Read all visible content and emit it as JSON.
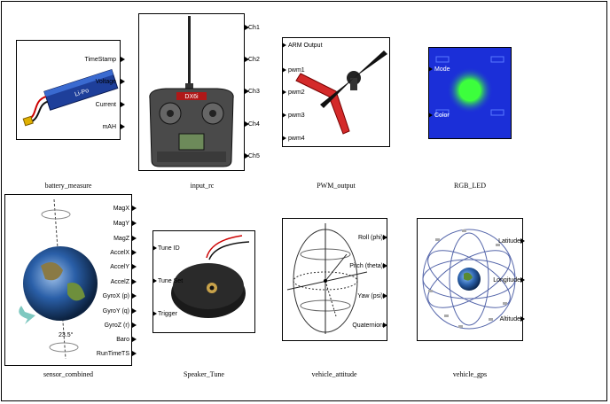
{
  "blocks": {
    "battery_measure": {
      "title": "battery_measure",
      "outputs": [
        "TimeStamp",
        "Voltage",
        "Current",
        "mAH"
      ],
      "image_icon": "lipo-battery-icon"
    },
    "input_rc": {
      "title": "input_rc",
      "outputs": [
        "Ch1",
        "Ch2",
        "Ch3",
        "Ch4",
        "Ch5"
      ],
      "image_icon": "rc-transmitter-icon",
      "brand_text": "DX6i"
    },
    "pwm_output": {
      "title": "PWM_output",
      "inputs": [
        "ARM Output",
        "pwm1",
        "pwm2",
        "pwm3",
        "pwm4"
      ],
      "image_icon": "motor-propeller-icon"
    },
    "rgb_led": {
      "title": "RGB_LED",
      "inputs": [
        "Mode",
        "Color"
      ],
      "image_icon": "led-board-icon"
    },
    "sensor_combined": {
      "title": "sensor_combined",
      "outputs": [
        "MagX",
        "MagY",
        "MagZ",
        "AccelX",
        "AccelY",
        "AccelZ",
        "GyroX (p)",
        "GyroY (q)",
        "GyroZ (r)",
        "Baro",
        "RunTimeTS"
      ],
      "image_icon": "earth-rotation-icon",
      "tilt_label": "23.5°"
    },
    "speaker_tune": {
      "title": "Speaker_Tune",
      "inputs": [
        "Tune ID",
        "Tune Set",
        "Trigger"
      ],
      "image_icon": "buzzer-icon"
    },
    "vehicle_attitude": {
      "title": "vehicle_attitude",
      "outputs": [
        "Roll (phi)",
        "Pitch (theta)",
        "Yaw (psi)",
        "Quaternion"
      ],
      "image_icon": "attitude-sphere-icon"
    },
    "vehicle_gps": {
      "title": "vehicle_gps",
      "outputs": [
        "Latitude",
        "Longitude",
        "Altitude"
      ],
      "image_icon": "gps-constellation-icon"
    }
  },
  "colors": {
    "led_background": "#1b2fd8",
    "led_glow": "#3cff3c",
    "rc_frame": "#c02020",
    "earth_blue": "#2a5fa8"
  }
}
